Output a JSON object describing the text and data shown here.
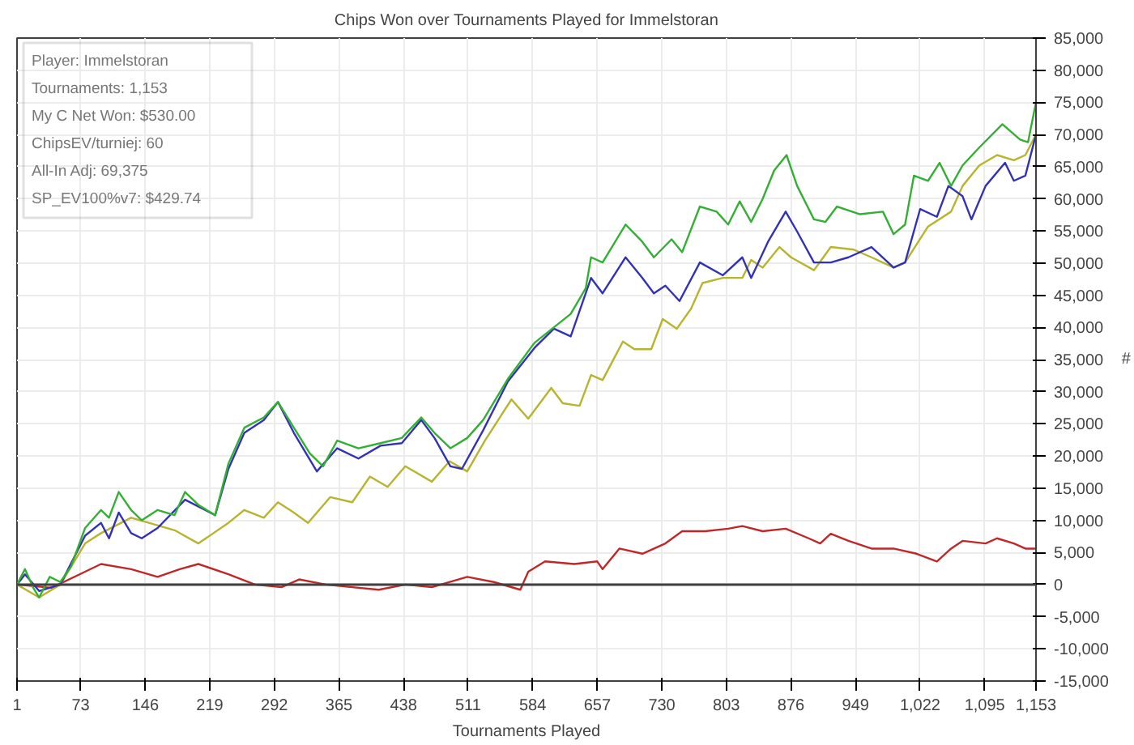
{
  "chart_data": {
    "type": "line",
    "title": "Chips Won over Tournaments Played for Immelstoran",
    "xlabel": "Tournaments Played",
    "ylabel": "#",
    "annotations": [
      "Player: Immelstoran",
      "Tournaments: 1,153",
      "My C Net Won: $530.00",
      "ChipsEV/turniej: 60",
      "All-In Adj: 69,375",
      "SP_EV100%v7: $429.74"
    ],
    "xlim": [
      1,
      1153
    ],
    "xticks": [
      1,
      73,
      146,
      219,
      292,
      365,
      438,
      511,
      584,
      657,
      730,
      803,
      876,
      949,
      {
        "value": 1022,
        "label": "1,022"
      },
      {
        "value": 1095,
        "label": "1,095"
      },
      {
        "value": 1153,
        "label": "1,153"
      }
    ],
    "ylim": [
      -15000,
      85000
    ],
    "yticks": [
      {
        "value": -15000,
        "label": "-15,000"
      },
      {
        "value": -10000,
        "label": "-10,000"
      },
      {
        "value": -5000,
        "label": "-5,000"
      },
      0,
      {
        "value": 5000,
        "label": "5,000"
      },
      {
        "value": 10000,
        "label": "10,000"
      },
      {
        "value": 15000,
        "label": "15,000"
      },
      {
        "value": 20000,
        "label": "20,000"
      },
      {
        "value": 25000,
        "label": "25,000"
      },
      {
        "value": 30000,
        "label": "30,000"
      },
      {
        "value": 35000,
        "label": "35,000"
      },
      {
        "value": 40000,
        "label": "40,000"
      },
      {
        "value": 45000,
        "label": "45,000"
      },
      {
        "value": 50000,
        "label": "50,000"
      },
      {
        "value": 55000,
        "label": "55,000"
      },
      {
        "value": 60000,
        "label": "60,000"
      },
      {
        "value": 65000,
        "label": "65,000"
      },
      {
        "value": 70000,
        "label": "70,000"
      },
      {
        "value": 75000,
        "label": "75,000"
      },
      {
        "value": 80000,
        "label": "80,000"
      },
      {
        "value": 85000,
        "label": "85,000"
      }
    ],
    "grid": true,
    "line_style": "solid",
    "marker": "none",
    "ref_lines": [
      {
        "axis": "y",
        "value": 0,
        "color": "#404040"
      }
    ],
    "series": [
      {
        "color": "#c02828",
        "x": [
          1,
          40,
          78,
          96,
          130,
          160,
          185,
          206,
          240,
          270,
          300,
          320,
          350,
          380,
          410,
          440,
          470,
          510,
          540,
          570,
          579,
          598,
          631,
          657,
          663,
          682,
          708,
          734,
          753,
          779,
          805,
          821,
          844,
          870,
          896,
          909,
          921,
          941,
          967,
          992,
          1018,
          1041,
          1057,
          1070,
          1096,
          1109,
          1128,
          1141,
          1153
        ],
        "values": [
          0,
          -500,
          2000,
          3200,
          2400,
          1200,
          2400,
          3200,
          1600,
          0,
          -400,
          800,
          0,
          -400,
          -800,
          0,
          -400,
          1200,
          400,
          -800,
          2000,
          3600,
          3200,
          3600,
          2400,
          5600,
          4800,
          6400,
          8300,
          8300,
          8700,
          9100,
          8300,
          8700,
          7200,
          6400,
          7900,
          6800,
          5600,
          5600,
          4800,
          3600,
          5600,
          6800,
          6400,
          7200,
          6400,
          5600,
          5600
        ]
      },
      {
        "color": "#b8b42e",
        "x": [
          1,
          26,
          50,
          78,
          96,
          130,
          150,
          180,
          206,
          240,
          258,
          280,
          296,
          314,
          330,
          355,
          380,
          400,
          420,
          440,
          470,
          490,
          510,
          530,
          560,
          579,
          605,
          618,
          637,
          650,
          663,
          686,
          699,
          718,
          731,
          747,
          763,
          776,
          799,
          821,
          831,
          844,
          863,
          876,
          902,
          921,
          947,
          967,
          992,
          1005,
          1031,
          1057,
          1070,
          1089,
          1109,
          1128,
          1141,
          1153
        ],
        "values": [
          0,
          -2000,
          0,
          6400,
          8000,
          10400,
          9600,
          8400,
          6400,
          9600,
          11600,
          10400,
          12800,
          11200,
          9600,
          13600,
          12800,
          16800,
          15200,
          18400,
          16000,
          19200,
          17600,
          22400,
          28800,
          25800,
          30600,
          28200,
          27800,
          32600,
          31800,
          37800,
          36600,
          36600,
          41300,
          39800,
          42900,
          46900,
          47700,
          47700,
          50500,
          49300,
          52500,
          50900,
          48900,
          52500,
          52100,
          50900,
          49300,
          50100,
          55700,
          58000,
          62000,
          65200,
          66800,
          66000,
          66800,
          70000
        ]
      },
      {
        "color": "#3232b8",
        "x": [
          1,
          10,
          26,
          50,
          78,
          96,
          105,
          116,
          130,
          142,
          160,
          191,
          225,
          240,
          258,
          280,
          296,
          314,
          340,
          363,
          387,
          412,
          436,
          458,
          473,
          491,
          504,
          528,
          556,
          586,
          608,
          627,
          650,
          663,
          689,
          708,
          721,
          734,
          750,
          773,
          799,
          821,
          831,
          850,
          870,
          883,
          902,
          921,
          941,
          967,
          992,
          1005,
          1022,
          1041,
          1054,
          1070,
          1080,
          1096,
          1118,
          1128,
          1141,
          1153
        ],
        "values": [
          0,
          1600,
          -1000,
          0,
          7600,
          9600,
          7200,
          11200,
          8000,
          7200,
          8800,
          13200,
          10800,
          18000,
          23600,
          25600,
          28400,
          23600,
          17600,
          21200,
          19600,
          21600,
          22000,
          25600,
          22800,
          18400,
          18000,
          24000,
          31600,
          36800,
          39800,
          38600,
          47700,
          45300,
          50900,
          47700,
          45300,
          46500,
          44100,
          50100,
          48100,
          50900,
          47700,
          53300,
          58000,
          54900,
          50100,
          50100,
          50900,
          52500,
          49300,
          50100,
          58400,
          57200,
          62000,
          60400,
          56800,
          62000,
          65600,
          62800,
          63600,
          70000
        ]
      },
      {
        "color": "#33b033",
        "x": [
          1,
          10,
          19,
          26,
          38,
          50,
          62,
          78,
          96,
          105,
          116,
          130,
          142,
          160,
          179,
          191,
          206,
          225,
          240,
          258,
          280,
          296,
          314,
          332,
          347,
          363,
          387,
          412,
          436,
          458,
          473,
          491,
          510,
          528,
          556,
          586,
          627,
          644,
          650,
          663,
          689,
          708,
          721,
          741,
          753,
          773,
          792,
          805,
          818,
          831,
          844,
          857,
          871,
          883,
          902,
          915,
          928,
          954,
          980,
          992,
          1005,
          1015,
          1031,
          1044,
          1057,
          1070,
          1089,
          1115,
          1135,
          1144,
          1153
        ],
        "values": [
          0,
          2400,
          -400,
          -2000,
          1200,
          400,
          2800,
          8800,
          11600,
          10400,
          14400,
          11600,
          10000,
          11600,
          10800,
          14400,
          12400,
          10800,
          18800,
          24400,
          26000,
          28400,
          24400,
          20400,
          18400,
          22400,
          21200,
          22000,
          22800,
          26000,
          23600,
          21200,
          22800,
          25600,
          32000,
          37600,
          42100,
          46100,
          50900,
          50100,
          56000,
          53300,
          50900,
          53700,
          51700,
          58800,
          58000,
          56000,
          59600,
          56400,
          60000,
          64400,
          66800,
          62000,
          56800,
          56400,
          58800,
          57600,
          58000,
          54500,
          56000,
          63600,
          62800,
          65600,
          62000,
          65200,
          68000,
          71600,
          69200,
          68800,
          75000
        ]
      }
    ]
  }
}
